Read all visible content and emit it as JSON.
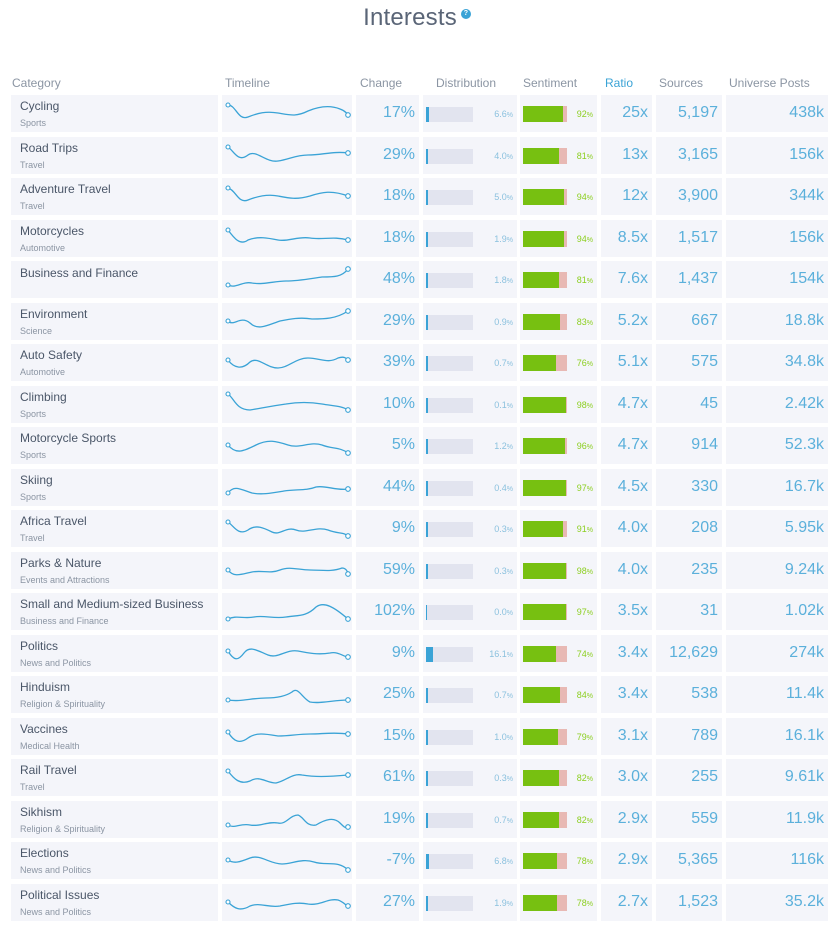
{
  "page": {
    "title": "Interests",
    "help_icon": "question-circle-icon"
  },
  "colors": {
    "accent": "#3aa3d6",
    "sentiment_positive": "#77c011",
    "sentiment_negative": "#e8b9b4",
    "row_bg": "#f4f5fa"
  },
  "columns": {
    "category": "Category",
    "timeline": "Timeline",
    "change": "Change",
    "distribution": "Distribution",
    "sentiment": "Sentiment",
    "ratio": "Ratio",
    "sources": "Sources",
    "universe_posts": "Universe Posts"
  },
  "sort_column": "ratio",
  "rows": [
    {
      "name": "Cycling",
      "sub": "Sports",
      "change": "17%",
      "distribution": 6.6,
      "distribution_label": "6.6",
      "sentiment": 92,
      "ratio": "25x",
      "sources": "5,197",
      "universe_posts": "438k"
    },
    {
      "name": "Road Trips",
      "sub": "Travel",
      "change": "29%",
      "distribution": 4.0,
      "distribution_label": "4.0",
      "sentiment": 81,
      "ratio": "13x",
      "sources": "3,165",
      "universe_posts": "156k"
    },
    {
      "name": "Adventure Travel",
      "sub": "Travel",
      "change": "18%",
      "distribution": 5.0,
      "distribution_label": "5.0",
      "sentiment": 94,
      "ratio": "12x",
      "sources": "3,900",
      "universe_posts": "344k"
    },
    {
      "name": "Motorcycles",
      "sub": "Automotive",
      "change": "18%",
      "distribution": 1.9,
      "distribution_label": "1.9",
      "sentiment": 94,
      "ratio": "8.5x",
      "sources": "1,517",
      "universe_posts": "156k"
    },
    {
      "name": "Business and Finance",
      "sub": "",
      "change": "48%",
      "distribution": 1.8,
      "distribution_label": "1.8",
      "sentiment": 81,
      "ratio": "7.6x",
      "sources": "1,437",
      "universe_posts": "154k"
    },
    {
      "name": "Environment",
      "sub": "Science",
      "change": "29%",
      "distribution": 0.9,
      "distribution_label": "0.9",
      "sentiment": 83,
      "ratio": "5.2x",
      "sources": "667",
      "universe_posts": "18.8k"
    },
    {
      "name": "Auto Safety",
      "sub": "Automotive",
      "change": "39%",
      "distribution": 0.7,
      "distribution_label": "0.7",
      "sentiment": 76,
      "ratio": "5.1x",
      "sources": "575",
      "universe_posts": "34.8k"
    },
    {
      "name": "Climbing",
      "sub": "Sports",
      "change": "10%",
      "distribution": 0.1,
      "distribution_label": "0.1",
      "sentiment": 98,
      "ratio": "4.7x",
      "sources": "45",
      "universe_posts": "2.42k"
    },
    {
      "name": "Motorcycle Sports",
      "sub": "Sports",
      "change": "5%",
      "distribution": 1.2,
      "distribution_label": "1.2",
      "sentiment": 96,
      "ratio": "4.7x",
      "sources": "914",
      "universe_posts": "52.3k"
    },
    {
      "name": "Skiing",
      "sub": "Sports",
      "change": "44%",
      "distribution": 0.4,
      "distribution_label": "0.4",
      "sentiment": 97,
      "ratio": "4.5x",
      "sources": "330",
      "universe_posts": "16.7k"
    },
    {
      "name": "Africa Travel",
      "sub": "Travel",
      "change": "9%",
      "distribution": 0.3,
      "distribution_label": "0.3",
      "sentiment": 91,
      "ratio": "4.0x",
      "sources": "208",
      "universe_posts": "5.95k"
    },
    {
      "name": "Parks & Nature",
      "sub": "Events and Attractions",
      "change": "59%",
      "distribution": 0.3,
      "distribution_label": "0.3",
      "sentiment": 98,
      "ratio": "4.0x",
      "sources": "235",
      "universe_posts": "9.24k"
    },
    {
      "name": "Small and Medium-sized Business",
      "sub": "Business and Finance",
      "change": "102%",
      "distribution": 0.0,
      "distribution_label": "0.0",
      "sentiment": 97,
      "ratio": "3.5x",
      "sources": "31",
      "universe_posts": "1.02k"
    },
    {
      "name": "Politics",
      "sub": "News and Politics",
      "change": "9%",
      "distribution": 16.1,
      "distribution_label": "16.1",
      "sentiment": 74,
      "ratio": "3.4x",
      "sources": "12,629",
      "universe_posts": "274k"
    },
    {
      "name": "Hinduism",
      "sub": "Religion & Spirituality",
      "change": "25%",
      "distribution": 0.7,
      "distribution_label": "0.7",
      "sentiment": 84,
      "ratio": "3.4x",
      "sources": "538",
      "universe_posts": "11.4k"
    },
    {
      "name": "Vaccines",
      "sub": "Medical Health",
      "change": "15%",
      "distribution": 1.0,
      "distribution_label": "1.0",
      "sentiment": 79,
      "ratio": "3.1x",
      "sources": "789",
      "universe_posts": "16.1k"
    },
    {
      "name": "Rail Travel",
      "sub": "Travel",
      "change": "61%",
      "distribution": 0.3,
      "distribution_label": "0.3",
      "sentiment": 82,
      "ratio": "3.0x",
      "sources": "255",
      "universe_posts": "9.61k"
    },
    {
      "name": "Sikhism",
      "sub": "Religion & Spirituality",
      "change": "19%",
      "distribution": 0.7,
      "distribution_label": "0.7",
      "sentiment": 82,
      "ratio": "2.9x",
      "sources": "559",
      "universe_posts": "11.9k"
    },
    {
      "name": "Elections",
      "sub": "News and Politics",
      "change": "-7%",
      "distribution": 6.8,
      "distribution_label": "6.8",
      "sentiment": 78,
      "ratio": "2.9x",
      "sources": "5,365",
      "universe_posts": "116k"
    },
    {
      "name": "Political Issues",
      "sub": "News and Politics",
      "change": "27%",
      "distribution": 1.9,
      "distribution_label": "1.9",
      "sentiment": 78,
      "ratio": "2.7x",
      "sources": "1,523",
      "universe_posts": "35.2k"
    }
  ]
}
